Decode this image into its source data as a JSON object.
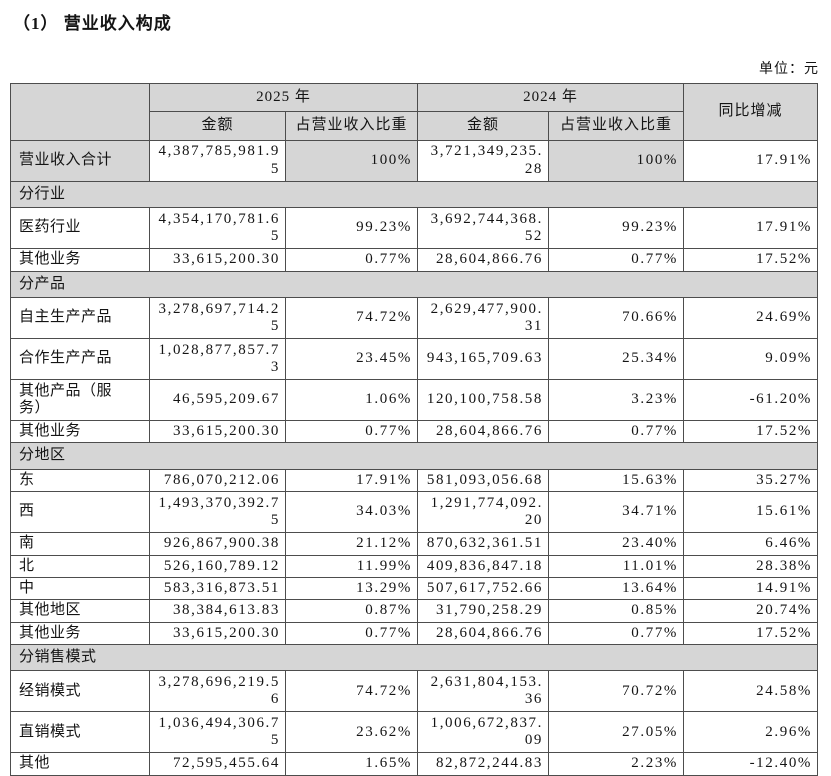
{
  "page": {
    "title": "（1） 营业收入构成",
    "unit_label": "单位：元"
  },
  "colors": {
    "header_fill": "#d6d6d6",
    "border": "#4d4d4d",
    "text": "#141414"
  },
  "table": {
    "header": {
      "year_2025": "2025 年",
      "year_2024": "2024 年",
      "amount": "金额",
      "ratio": "占营业收入比重",
      "yoy": "同比增减"
    },
    "rows": [
      {
        "type": "total",
        "label": "营业收入合计",
        "a2025": "4,387,785,981.95",
        "r2025": "100%",
        "a2024": "3,721,349,235.28",
        "r2024": "100%",
        "yoy": "17.91%"
      },
      {
        "type": "section",
        "label": "分行业"
      },
      {
        "type": "data",
        "label": "医药行业",
        "a2025": "4,354,170,781.65",
        "r2025": "99.23%",
        "a2024": "3,692,744,368.52",
        "r2024": "99.23%",
        "yoy": "17.91%"
      },
      {
        "type": "data",
        "label": "其他业务",
        "a2025": "33,615,200.30",
        "r2025": "0.77%",
        "a2024": "28,604,866.76",
        "r2024": "0.77%",
        "yoy": "17.52%"
      },
      {
        "type": "section",
        "label": "分产品"
      },
      {
        "type": "data",
        "label": "自主生产产品",
        "a2025": "3,278,697,714.25",
        "r2025": "74.72%",
        "a2024": "2,629,477,900.31",
        "r2024": "70.66%",
        "yoy": "24.69%"
      },
      {
        "type": "data",
        "label": "合作生产产品",
        "a2025": "1,028,877,857.73",
        "r2025": "23.45%",
        "a2024": "943,165,709.63",
        "r2024": "25.34%",
        "yoy": "9.09%"
      },
      {
        "type": "data",
        "label": "其他产品（服务）",
        "a2025": "46,595,209.67",
        "r2025": "1.06%",
        "a2024": "120,100,758.58",
        "r2024": "3.23%",
        "yoy": "-61.20%"
      },
      {
        "type": "data",
        "label": "其他业务",
        "a2025": "33,615,200.30",
        "r2025": "0.77%",
        "a2024": "28,604,866.76",
        "r2024": "0.77%",
        "yoy": "17.52%"
      },
      {
        "type": "section",
        "label": "分地区"
      },
      {
        "type": "data",
        "label": "东",
        "a2025": "786,070,212.06",
        "r2025": "17.91%",
        "a2024": "581,093,056.68",
        "r2024": "15.63%",
        "yoy": "35.27%"
      },
      {
        "type": "data",
        "label": "西",
        "a2025": "1,493,370,392.75",
        "r2025": "34.03%",
        "a2024": "1,291,774,092.20",
        "r2024": "34.71%",
        "yoy": "15.61%"
      },
      {
        "type": "data",
        "label": "南",
        "a2025": "926,867,900.38",
        "r2025": "21.12%",
        "a2024": "870,632,361.51",
        "r2024": "23.40%",
        "yoy": "6.46%"
      },
      {
        "type": "data",
        "label": "北",
        "a2025": "526,160,789.12",
        "r2025": "11.99%",
        "a2024": "409,836,847.18",
        "r2024": "11.01%",
        "yoy": "28.38%"
      },
      {
        "type": "data",
        "label": "中",
        "a2025": "583,316,873.51",
        "r2025": "13.29%",
        "a2024": "507,617,752.66",
        "r2024": "13.64%",
        "yoy": "14.91%"
      },
      {
        "type": "data",
        "label": "其他地区",
        "a2025": "38,384,613.83",
        "r2025": "0.87%",
        "a2024": "31,790,258.29",
        "r2024": "0.85%",
        "yoy": "20.74%"
      },
      {
        "type": "data",
        "label": "其他业务",
        "a2025": "33,615,200.30",
        "r2025": "0.77%",
        "a2024": "28,604,866.76",
        "r2024": "0.77%",
        "yoy": "17.52%"
      },
      {
        "type": "section",
        "label": "分销售模式"
      },
      {
        "type": "data",
        "label": "经销模式",
        "a2025": "3,278,696,219.56",
        "r2025": "74.72%",
        "a2024": "2,631,804,153.36",
        "r2024": "70.72%",
        "yoy": "24.58%"
      },
      {
        "type": "data",
        "label": "直销模式",
        "a2025": "1,036,494,306.75",
        "r2025": "23.62%",
        "a2024": "1,006,672,837.09",
        "r2024": "27.05%",
        "yoy": "2.96%"
      },
      {
        "type": "data",
        "label": "其他",
        "a2025": "72,595,455.64",
        "r2025": "1.65%",
        "a2024": "82,872,244.83",
        "r2024": "2.23%",
        "yoy": "-12.40%"
      }
    ]
  }
}
